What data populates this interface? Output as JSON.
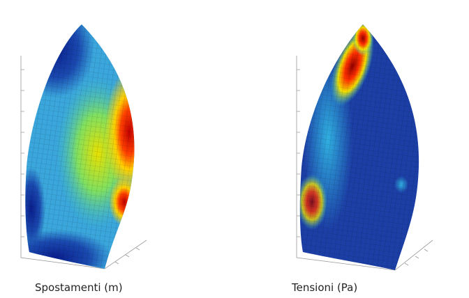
{
  "panels": [
    {
      "caption": "Spostamenti (m)"
    },
    {
      "caption": "Tensioni (Pa)"
    }
  ]
}
